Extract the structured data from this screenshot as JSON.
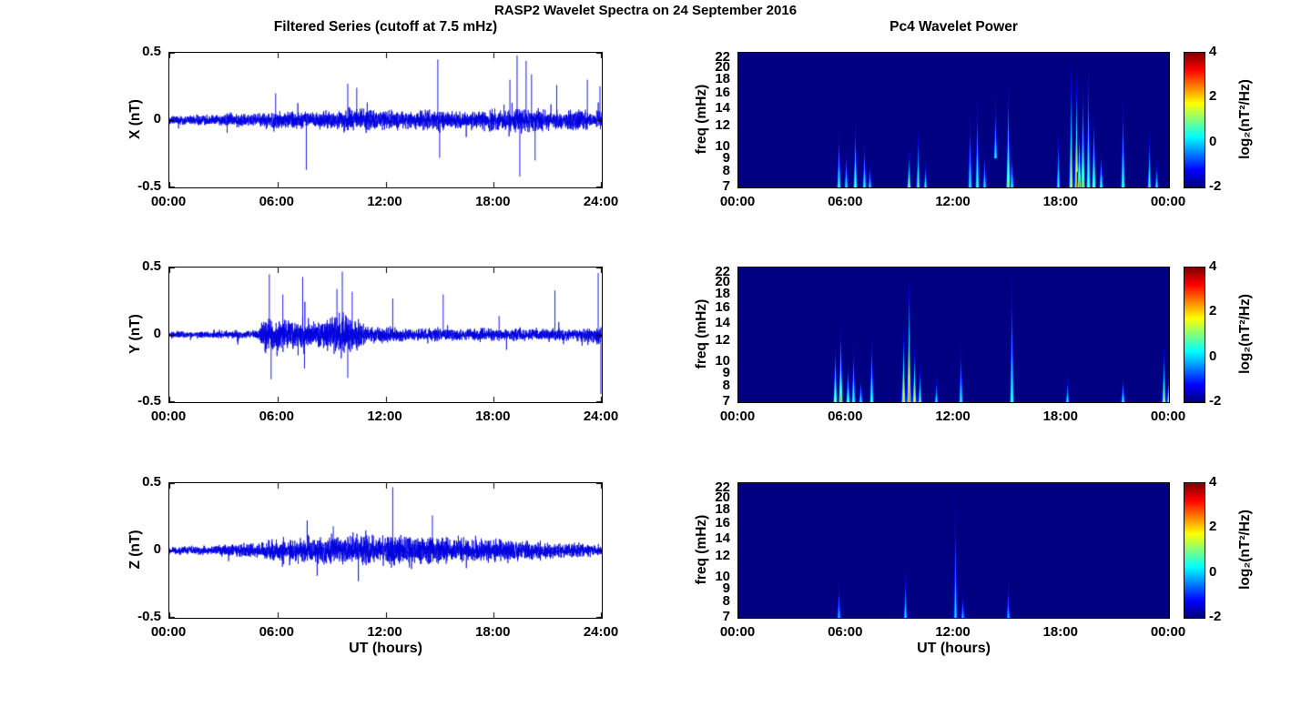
{
  "figure": {
    "title": "RASP2 Wavelet Spectra on 24 September 2016",
    "left_column_title": "Filtered Series (cutoff at 7.5 mHz)",
    "right_column_title": "Pc4 Wavelet Power",
    "xlabel": "UT (hours)"
  },
  "chart_data": [
    {
      "type": "line",
      "name": "filtered-series-x",
      "ylabel": "X (nT)",
      "ylim": [
        -0.5,
        0.5
      ],
      "yticks": [
        0.5,
        0,
        -0.5
      ],
      "x_hours_range": [
        0,
        24
      ],
      "xticklabels": [
        "00:00",
        "06:00",
        "12:00",
        "18:00",
        "24:00"
      ],
      "line_color": "#0000E0",
      "envelope": {
        "hours": [
          0,
          3,
          5,
          6,
          7,
          8,
          9,
          10,
          11,
          12,
          13,
          14,
          15,
          16,
          17,
          18,
          19,
          20,
          21,
          22,
          23,
          24
        ],
        "amplitude": [
          0.035,
          0.045,
          0.05,
          0.07,
          0.065,
          0.06,
          0.07,
          0.09,
          0.08,
          0.075,
          0.07,
          0.075,
          0.07,
          0.065,
          0.07,
          0.08,
          0.095,
          0.09,
          0.075,
          0.07,
          0.075,
          0.065
        ]
      },
      "spikes": [
        [
          5.9,
          0.2
        ],
        [
          7.6,
          -0.37
        ],
        [
          9.9,
          0.27
        ],
        [
          10.4,
          0.24
        ],
        [
          14.9,
          0.45
        ],
        [
          15.0,
          -0.28
        ],
        [
          18.9,
          0.3
        ],
        [
          19.3,
          0.48
        ],
        [
          19.45,
          -0.42
        ],
        [
          19.8,
          0.44
        ],
        [
          20.1,
          0.34
        ],
        [
          20.3,
          -0.3
        ],
        [
          21.5,
          0.26
        ],
        [
          23.2,
          0.3
        ],
        [
          23.9,
          0.25
        ]
      ]
    },
    {
      "type": "line",
      "name": "filtered-series-y",
      "ylabel": "Y (nT)",
      "ylim": [
        -0.5,
        0.5
      ],
      "yticks": [
        0.5,
        0,
        -0.5
      ],
      "x_hours_range": [
        0,
        24
      ],
      "xticklabels": [
        "00:00",
        "06:00",
        "12:00",
        "18:00",
        "24:00"
      ],
      "line_color": "#0000E0",
      "envelope": {
        "hours": [
          0,
          2,
          4,
          5,
          5.3,
          5.8,
          6.5,
          7,
          7.5,
          8,
          8.5,
          9,
          9.5,
          10,
          10.5,
          11,
          11.5,
          12,
          13,
          14,
          15,
          16,
          17,
          18,
          19,
          20,
          21,
          22,
          23,
          24
        ],
        "amplitude": [
          0.025,
          0.025,
          0.03,
          0.04,
          0.15,
          0.13,
          0.11,
          0.1,
          0.12,
          0.1,
          0.11,
          0.14,
          0.17,
          0.14,
          0.11,
          0.07,
          0.06,
          0.06,
          0.05,
          0.05,
          0.05,
          0.045,
          0.045,
          0.05,
          0.045,
          0.045,
          0.05,
          0.045,
          0.05,
          0.07
        ]
      },
      "spikes": [
        [
          5.55,
          0.45
        ],
        [
          5.65,
          -0.33
        ],
        [
          6.3,
          0.3
        ],
        [
          7.4,
          0.43
        ],
        [
          7.5,
          -0.25
        ],
        [
          9.3,
          0.34
        ],
        [
          9.6,
          0.47
        ],
        [
          9.9,
          -0.32
        ],
        [
          10.15,
          0.32
        ],
        [
          12.4,
          0.27
        ],
        [
          15.2,
          0.3
        ],
        [
          18.3,
          0.14
        ],
        [
          21.4,
          0.33
        ],
        [
          23.8,
          0.46
        ],
        [
          23.95,
          -0.44
        ]
      ]
    },
    {
      "type": "line",
      "name": "filtered-series-z",
      "ylabel": "Z (nT)",
      "ylim": [
        -0.5,
        0.5
      ],
      "yticks": [
        0.5,
        0,
        -0.5
      ],
      "x_hours_range": [
        0,
        24
      ],
      "xticklabels": [
        "00:00",
        "06:00",
        "12:00",
        "18:00",
        "24:00"
      ],
      "line_color": "#0000E0",
      "envelope": {
        "hours": [
          0,
          2,
          4,
          6,
          8,
          10,
          12,
          14,
          16,
          18,
          20,
          22,
          24
        ],
        "amplitude": [
          0.025,
          0.035,
          0.055,
          0.08,
          0.1,
          0.115,
          0.115,
          0.11,
          0.1,
          0.09,
          0.075,
          0.055,
          0.045
        ]
      },
      "spikes": [
        [
          9.1,
          0.18
        ],
        [
          12.4,
          0.47
        ],
        [
          14.6,
          0.26
        ]
      ]
    },
    {
      "type": "heatmap",
      "name": "pc4-wavelet-power-x",
      "ylabel": "freq (mHz)",
      "yscale": "log",
      "ylim": [
        7,
        23
      ],
      "yticks": [
        22,
        20,
        18,
        16,
        14,
        12,
        10,
        9,
        8,
        7
      ],
      "x_hours_range": [
        0,
        24
      ],
      "xticklabels": [
        "00:00",
        "06:00",
        "12:00",
        "18:00",
        "00:00"
      ],
      "background_value": -2,
      "colorbar": {
        "colormap": "jet",
        "range": [
          -2,
          4
        ],
        "ticks": [
          4,
          2,
          0,
          -2
        ],
        "label": "log₂(nT²/Hz)"
      },
      "events": [
        {
          "t": 5.6,
          "f_lo": 7,
          "f_hi": 12,
          "value": 1.2
        },
        {
          "t": 6.0,
          "f_lo": 7,
          "f_hi": 10,
          "value": 0.8
        },
        {
          "t": 6.5,
          "f_lo": 7,
          "f_hi": 13,
          "value": 1.5
        },
        {
          "t": 7.0,
          "f_lo": 7,
          "f_hi": 11,
          "value": 1.0
        },
        {
          "t": 7.3,
          "f_lo": 7,
          "f_hi": 9,
          "value": 0.6
        },
        {
          "t": 9.5,
          "f_lo": 7,
          "f_hi": 10,
          "value": 1.6
        },
        {
          "t": 10.0,
          "f_lo": 7,
          "f_hi": 12,
          "value": 1.2
        },
        {
          "t": 10.4,
          "f_lo": 7,
          "f_hi": 9,
          "value": 0.8
        },
        {
          "t": 12.9,
          "f_lo": 7,
          "f_hi": 14,
          "value": 0.9
        },
        {
          "t": 13.3,
          "f_lo": 7,
          "f_hi": 16,
          "value": 1.2
        },
        {
          "t": 13.7,
          "f_lo": 7,
          "f_hi": 10,
          "value": 0.7
        },
        {
          "t": 14.3,
          "f_lo": 9,
          "f_hi": 16,
          "value": 0.8
        },
        {
          "t": 15.0,
          "f_lo": 7,
          "f_hi": 18,
          "value": 2.2
        },
        {
          "t": 15.2,
          "f_lo": 7,
          "f_hi": 10,
          "value": 1.0
        },
        {
          "t": 17.8,
          "f_lo": 7,
          "f_hi": 12,
          "value": 0.8
        },
        {
          "t": 18.5,
          "f_lo": 7,
          "f_hi": 22,
          "value": 1.8
        },
        {
          "t": 18.8,
          "f_lo": 7,
          "f_hi": 20,
          "value": 2.6
        },
        {
          "t": 19.0,
          "f_lo": 7,
          "f_hi": 12,
          "value": 3.0
        },
        {
          "t": 19.2,
          "f_lo": 7,
          "f_hi": 18,
          "value": 2.4
        },
        {
          "t": 19.5,
          "f_lo": 7,
          "f_hi": 22,
          "value": 1.6
        },
        {
          "t": 19.8,
          "f_lo": 7,
          "f_hi": 14,
          "value": 2.0
        },
        {
          "t": 20.2,
          "f_lo": 7,
          "f_hi": 10,
          "value": 1.2
        },
        {
          "t": 21.4,
          "f_lo": 7,
          "f_hi": 16,
          "value": 1.4
        },
        {
          "t": 22.9,
          "f_lo": 7,
          "f_hi": 12,
          "value": 1.0
        },
        {
          "t": 23.3,
          "f_lo": 7,
          "f_hi": 9,
          "value": 0.8
        }
      ]
    },
    {
      "type": "heatmap",
      "name": "pc4-wavelet-power-y",
      "ylabel": "freq (mHz)",
      "yscale": "log",
      "ylim": [
        7,
        23
      ],
      "yticks": [
        22,
        20,
        18,
        16,
        14,
        12,
        10,
        9,
        8,
        7
      ],
      "x_hours_range": [
        0,
        24
      ],
      "xticklabels": [
        "00:00",
        "06:00",
        "12:00",
        "18:00",
        "00:00"
      ],
      "background_value": -2,
      "colorbar": {
        "colormap": "jet",
        "range": [
          -2,
          4
        ],
        "ticks": [
          4,
          2,
          0,
          -2
        ],
        "label": "log₂(nT²/Hz)"
      },
      "events": [
        {
          "t": 5.4,
          "f_lo": 7,
          "f_hi": 12,
          "value": 2.0
        },
        {
          "t": 5.7,
          "f_lo": 7,
          "f_hi": 14,
          "value": 2.6
        },
        {
          "t": 6.1,
          "f_lo": 7,
          "f_hi": 10,
          "value": 1.6
        },
        {
          "t": 6.4,
          "f_lo": 7,
          "f_hi": 12,
          "value": 1.2
        },
        {
          "t": 6.8,
          "f_lo": 7,
          "f_hi": 9,
          "value": 0.8
        },
        {
          "t": 7.4,
          "f_lo": 7,
          "f_hi": 13,
          "value": 1.4
        },
        {
          "t": 9.2,
          "f_lo": 7,
          "f_hi": 14,
          "value": 2.2
        },
        {
          "t": 9.5,
          "f_lo": 7,
          "f_hi": 22,
          "value": 2.8
        },
        {
          "t": 9.8,
          "f_lo": 7,
          "f_hi": 12,
          "value": 2.0
        },
        {
          "t": 10.1,
          "f_lo": 7,
          "f_hi": 10,
          "value": 1.2
        },
        {
          "t": 11.0,
          "f_lo": 7,
          "f_hi": 9,
          "value": 0.6
        },
        {
          "t": 12.4,
          "f_lo": 7,
          "f_hi": 12,
          "value": 1.0
        },
        {
          "t": 15.2,
          "f_lo": 7,
          "f_hi": 22,
          "value": 1.4
        },
        {
          "t": 18.3,
          "f_lo": 7,
          "f_hi": 9,
          "value": 0.6
        },
        {
          "t": 21.4,
          "f_lo": 7,
          "f_hi": 9,
          "value": 1.0
        },
        {
          "t": 23.7,
          "f_lo": 7,
          "f_hi": 12,
          "value": 1.6
        },
        {
          "t": 23.95,
          "f_lo": 7,
          "f_hi": 9,
          "value": 1.0
        }
      ]
    },
    {
      "type": "heatmap",
      "name": "pc4-wavelet-power-z",
      "ylabel": "freq (mHz)",
      "yscale": "log",
      "ylim": [
        7,
        23
      ],
      "yticks": [
        22,
        20,
        18,
        16,
        14,
        12,
        10,
        9,
        8,
        7
      ],
      "x_hours_range": [
        0,
        24
      ],
      "xticklabels": [
        "00:00",
        "06:00",
        "12:00",
        "18:00",
        "00:00"
      ],
      "background_value": -2,
      "colorbar": {
        "colormap": "jet",
        "range": [
          -2,
          4
        ],
        "ticks": [
          4,
          2,
          0,
          -2
        ],
        "label": "log₂(nT²/Hz)"
      },
      "events": [
        {
          "t": 5.6,
          "f_lo": 7,
          "f_hi": 10,
          "value": 0.3
        },
        {
          "t": 9.3,
          "f_lo": 7,
          "f_hi": 11,
          "value": 0.5
        },
        {
          "t": 12.1,
          "f_lo": 7,
          "f_hi": 22,
          "value": 0.4
        },
        {
          "t": 12.5,
          "f_lo": 7,
          "f_hi": 9,
          "value": 0.3
        },
        {
          "t": 15.0,
          "f_lo": 7,
          "f_hi": 10,
          "value": 0.2
        }
      ]
    }
  ]
}
